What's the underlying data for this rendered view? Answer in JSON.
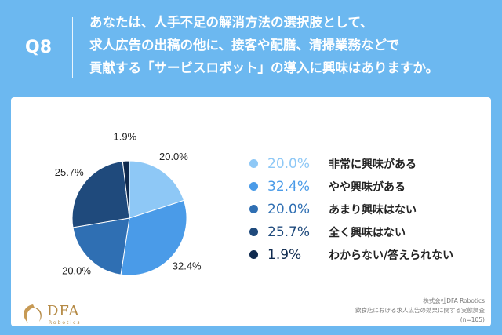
{
  "question": {
    "number": "Q8",
    "lines": [
      "あなたは、人手不足の解消方法の選択肢として、",
      "求人広告の出稿の他に、接客や配膳、清掃業務などで",
      "貢献する「サービスロボット」の導入に興味はありますか。"
    ]
  },
  "chart_data": {
    "type": "pie",
    "start_angle_deg": 0,
    "direction": "clockwise",
    "slices": [
      {
        "label": "非常に興味がある",
        "value": 20.0,
        "display": "20.0%",
        "color": "#8ec8f6"
      },
      {
        "label": "やや興味がある",
        "value": 32.4,
        "display": "32.4%",
        "color": "#4a9be8"
      },
      {
        "label": "あまり興味はない",
        "value": 20.0,
        "display": "20.0%",
        "color": "#2f6fb3"
      },
      {
        "label": "全く興味はない",
        "value": 25.7,
        "display": "25.7%",
        "color": "#1f4a7c"
      },
      {
        "label": "わからない/答えられない",
        "value": 1.9,
        "display": "1.9%",
        "color": "#0f2a4e"
      }
    ]
  },
  "logo": {
    "name": "DFA",
    "sub": "Robotics"
  },
  "credit": {
    "company": "株式会社DFA Robotics",
    "survey": "飲食店における求人広告の効果に関する実態調査",
    "sample": "(n=105)"
  }
}
